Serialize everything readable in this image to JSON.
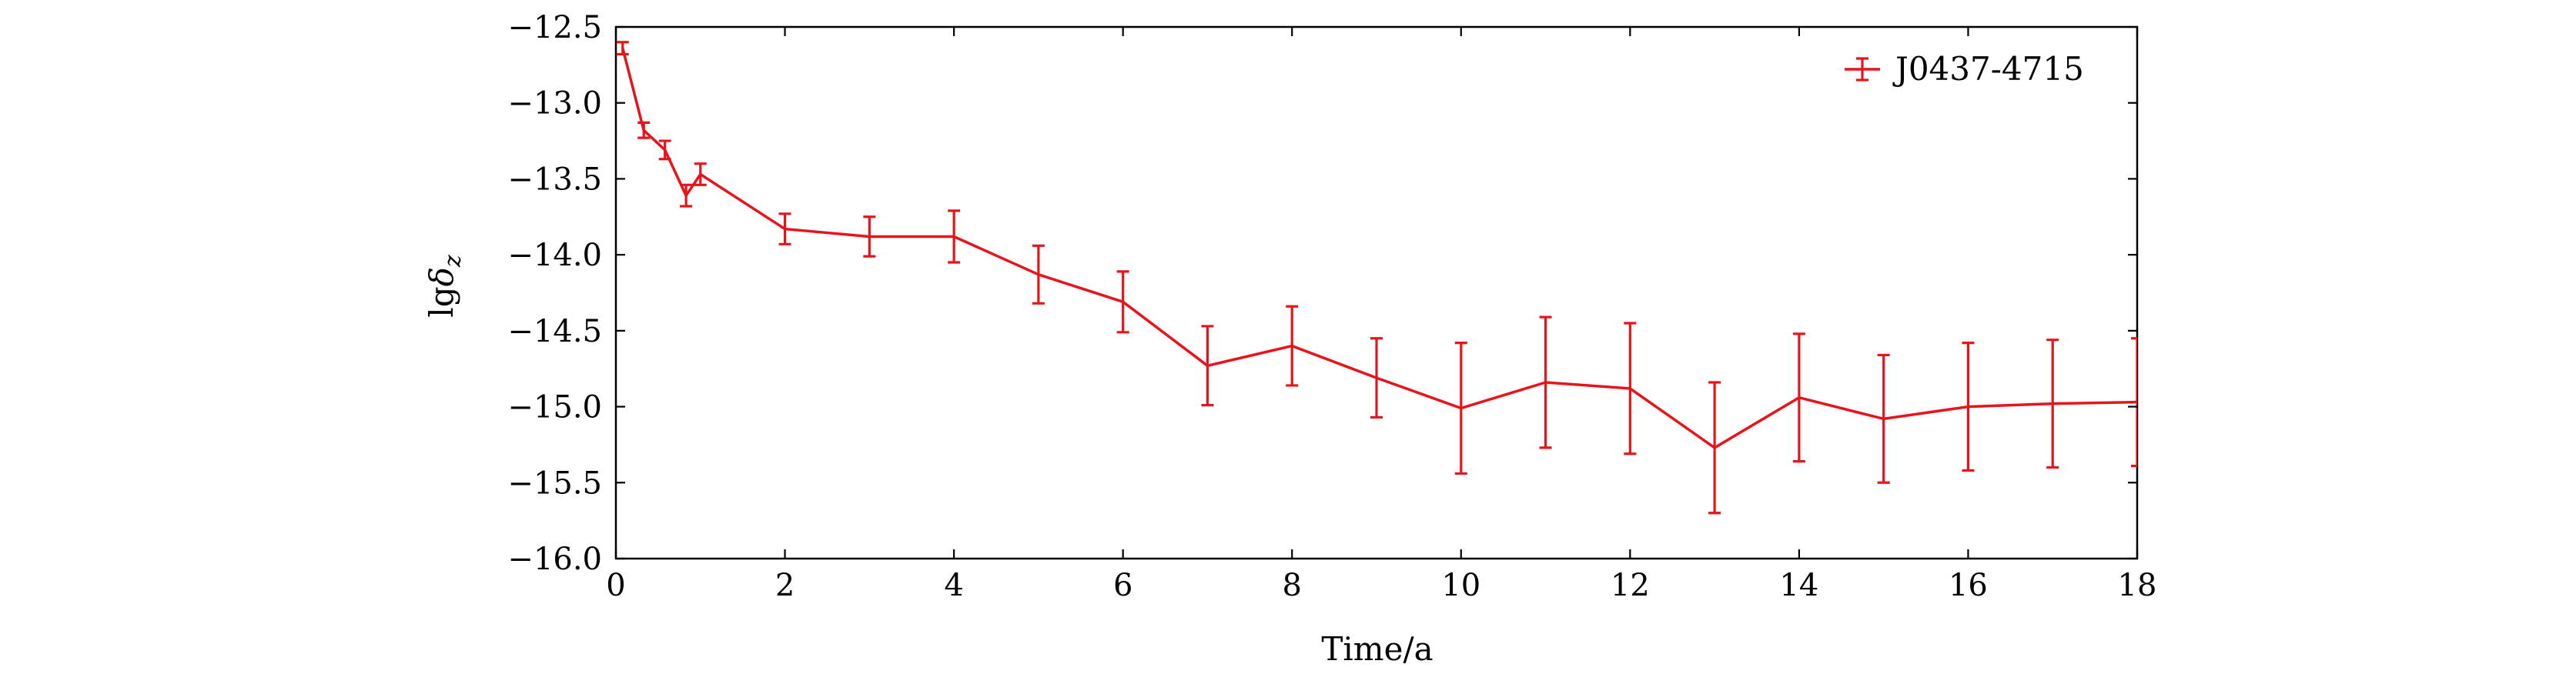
{
  "chart_data": {
    "type": "line",
    "title": "",
    "xlabel": "Time/a",
    "ylabel_parts": {
      "base": "lg",
      "symbol": "δ",
      "sub": "z"
    },
    "xlim": [
      0,
      18
    ],
    "ylim": [
      -16.0,
      -12.5
    ],
    "xticks": [
      0,
      2,
      4,
      6,
      8,
      10,
      12,
      14,
      16,
      18
    ],
    "yticks": [
      -12.5,
      -13.0,
      -13.5,
      -14.0,
      -14.5,
      -15.0,
      -15.5,
      -16.0
    ],
    "xtick_labels": [
      "0",
      "2",
      "4",
      "6",
      "8",
      "10",
      "12",
      "14",
      "16",
      "18"
    ],
    "ytick_labels": [
      "−12.5",
      "−13.0",
      "−13.5",
      "−14.0",
      "−14.5",
      "−15.0",
      "−15.5",
      "−16.0"
    ],
    "grid": false,
    "legend_position": "top-right",
    "series": [
      {
        "name": "J0437-4715",
        "color": "#e8141b",
        "x": [
          0.08,
          0.33,
          0.58,
          0.83,
          1,
          2,
          3,
          4,
          5,
          6,
          7,
          8,
          9,
          10,
          11,
          12,
          13,
          14,
          15,
          16,
          17,
          18
        ],
        "y": [
          -12.64,
          -13.18,
          -13.31,
          -13.61,
          -13.47,
          -13.83,
          -13.88,
          -13.88,
          -14.13,
          -14.31,
          -14.73,
          -14.6,
          -14.81,
          -15.01,
          -14.84,
          -14.88,
          -15.27,
          -14.94,
          -15.08,
          -15.0,
          -14.98,
          -14.97
        ],
        "err": [
          0.04,
          0.05,
          0.06,
          0.07,
          0.07,
          0.1,
          0.13,
          0.17,
          0.19,
          0.2,
          0.26,
          0.26,
          0.26,
          0.43,
          0.43,
          0.43,
          0.43,
          0.42,
          0.42,
          0.42,
          0.42,
          0.42
        ]
      }
    ]
  }
}
